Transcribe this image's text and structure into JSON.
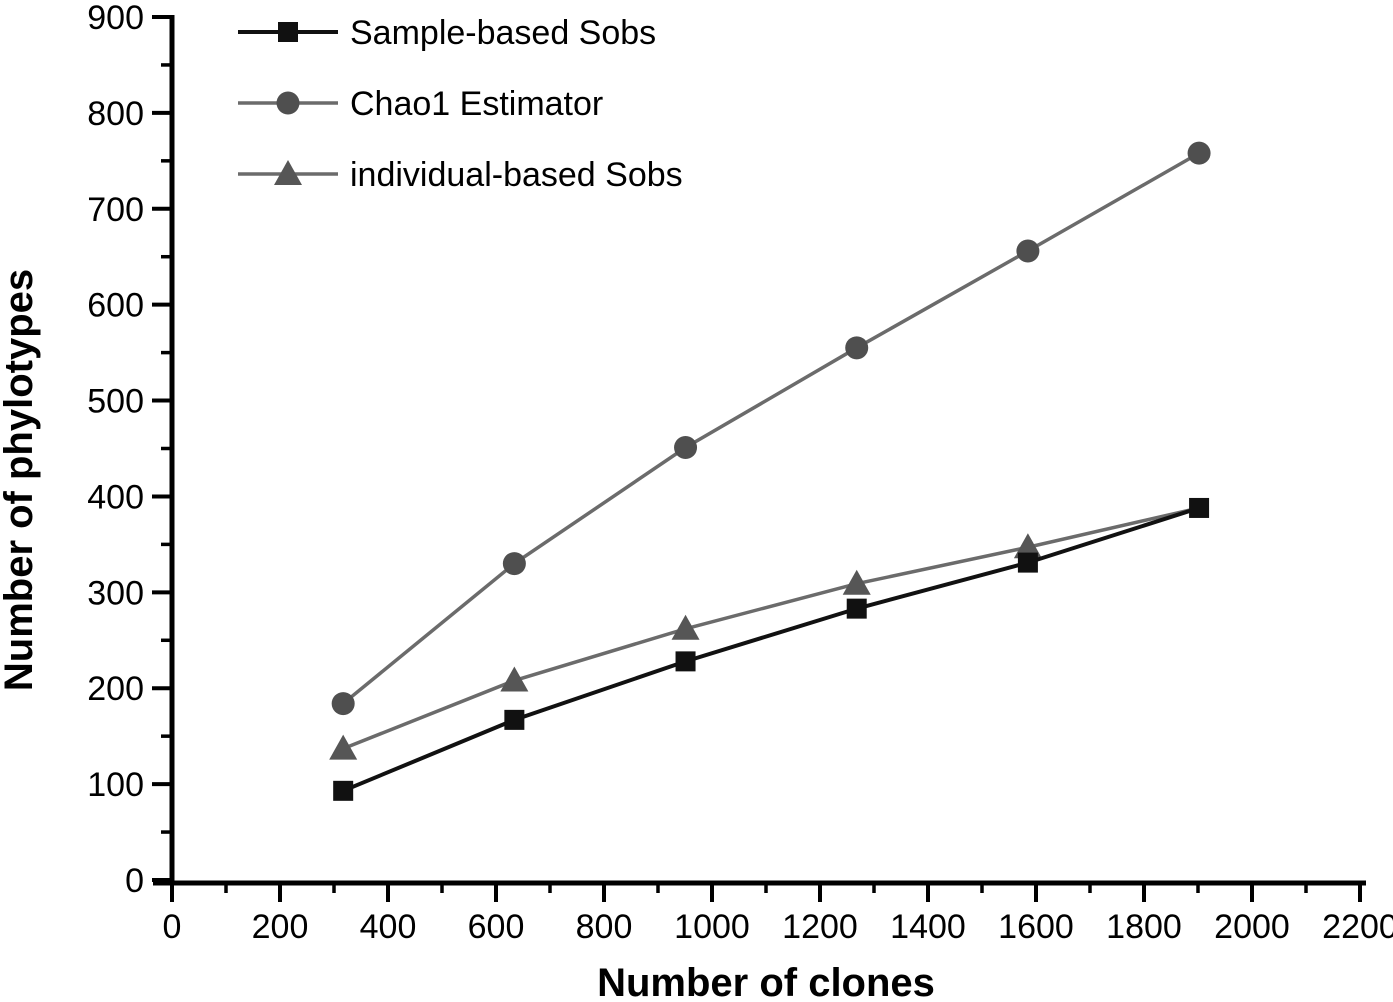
{
  "chart_data": {
    "type": "line",
    "title": "",
    "xlabel": "Number of clones",
    "ylabel": "Number of phylotypes",
    "xlim": [
      0,
      2200
    ],
    "ylim": [
      0,
      900
    ],
    "x_major_ticks": [
      0,
      200,
      400,
      600,
      800,
      1000,
      1200,
      1400,
      1600,
      1800,
      2000,
      2200
    ],
    "y_major_ticks": [
      0,
      100,
      200,
      300,
      400,
      500,
      600,
      700,
      800,
      900
    ],
    "x_minor_step": 100,
    "y_minor_step": 50,
    "grid": false,
    "legend_position": "top-left",
    "x": [
      317,
      634,
      951,
      1268,
      1585,
      1902
    ],
    "series": [
      {
        "name": "Chao1 Estimator",
        "marker": "circle",
        "line_color": "#6b6b6b",
        "marker_color": "#4f4f4f",
        "line_width": 3.5,
        "values": [
          184,
          330,
          451,
          555,
          656,
          758
        ],
        "last_marker_hidden": false
      },
      {
        "name": "individual-based Sobs",
        "marker": "triangle",
        "line_color": "#6b6b6b",
        "marker_color": "#565656",
        "line_width": 3.5,
        "values": [
          137,
          208,
          262,
          309,
          347,
          388
        ],
        "last_marker_hidden": true
      },
      {
        "name": "Sample-based Sobs",
        "marker": "square",
        "line_color": "#111111",
        "marker_color": "#111111",
        "line_width": 4,
        "values": [
          93,
          167,
          228,
          283,
          331,
          388
        ],
        "last_marker_hidden": false
      }
    ],
    "legend_order": [
      "Sample-based Sobs",
      "Chao1 Estimator",
      "individual-based Sobs"
    ],
    "axis_color": "#000000"
  }
}
